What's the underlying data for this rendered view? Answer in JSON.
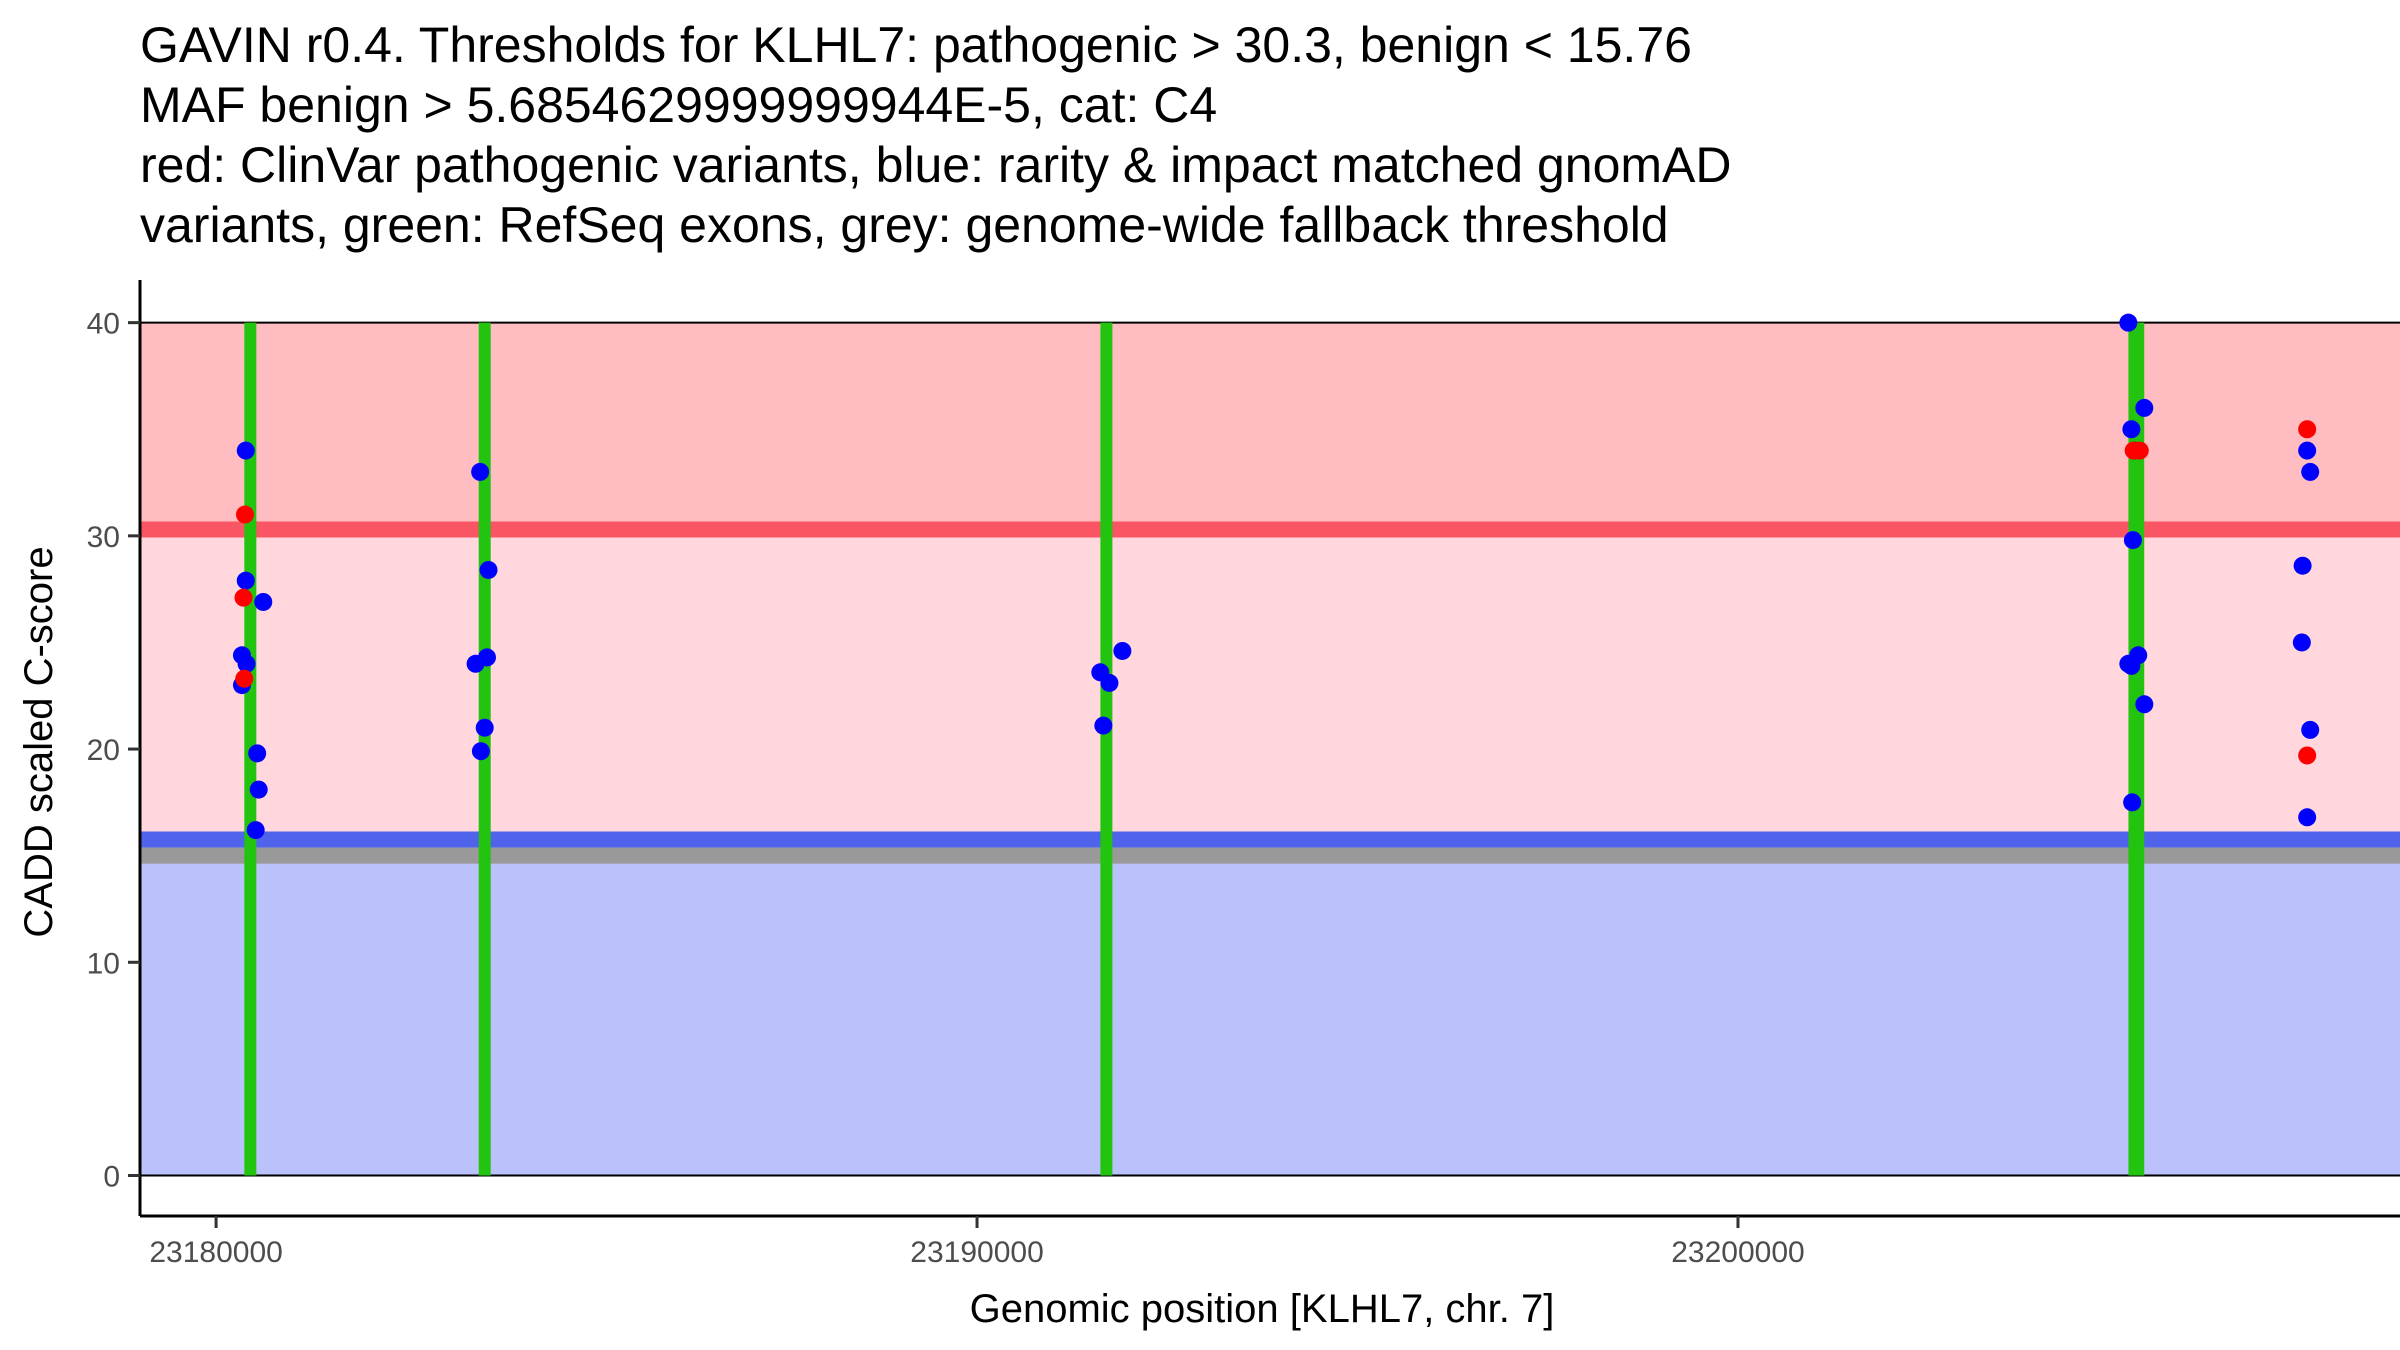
{
  "chart_data": {
    "type": "scatter",
    "title_lines": [
      "GAVIN r0.4. Thresholds for KLHL7: pathogenic > 30.3, benign < 15.76",
      "MAF benign > 5.6854629999999944E-5, cat: C4",
      "red: ClinVar pathogenic variants, blue: rarity & impact matched gnomAD",
      "variants, green: RefSeq exons, grey: genome-wide fallback threshold"
    ],
    "xlabel": "Genomic position [KLHL7, chr. 7]",
    "ylabel": "CADD scaled C-score",
    "xlim": [
      23179000,
      23208700
    ],
    "ylim": [
      -1.9,
      42
    ],
    "x_ticks": [
      23180000,
      23190000,
      23200000
    ],
    "x_tick_labels": [
      "23180000",
      "23190000",
      "23200000"
    ],
    "y_ticks": [
      0,
      10,
      20,
      30,
      40
    ],
    "y_tick_labels": [
      "0",
      "10",
      "20",
      "30",
      "40"
    ],
    "regions": [
      {
        "name": "benign-region",
        "y0": 0,
        "y1": 15.76,
        "color": "#bbc1fb"
      },
      {
        "name": "vus-region",
        "y0": 15.76,
        "y1": 30.3,
        "color": "#ffd7dc"
      },
      {
        "name": "pathogenic-region",
        "y0": 30.3,
        "y1": 40,
        "color": "#ffbcc1"
      }
    ],
    "region_x_range": [
      23179000,
      23208700
    ],
    "thresholds": [
      {
        "name": "fallback-threshold-line",
        "y": 15.0,
        "color": "#999999"
      },
      {
        "name": "benign-threshold-line",
        "y": 15.76,
        "color": "#4f63eb"
      },
      {
        "name": "pathogenic-threshold-line",
        "y": 30.3,
        "color": "#fa5564"
      }
    ],
    "exons": [
      23180450,
      23183530,
      23191700,
      23205210,
      23205260
    ],
    "exon_color": "#22c40f",
    "series": [
      {
        "name": "ClinVar pathogenic variants",
        "color": "#ff0000",
        "points": [
          {
            "x": 23180380,
            "y": 31.0
          },
          {
            "x": 23180360,
            "y": 27.1
          },
          {
            "x": 23180370,
            "y": 23.3
          },
          {
            "x": 23205200,
            "y": 34.0
          },
          {
            "x": 23205280,
            "y": 34.0
          },
          {
            "x": 23207480,
            "y": 35.0
          },
          {
            "x": 23207480,
            "y": 19.7
          }
        ]
      },
      {
        "name": "rarity & impact matched gnomAD variants",
        "color": "#0000ff",
        "points": [
          {
            "x": 23180390,
            "y": 34.0
          },
          {
            "x": 23180390,
            "y": 27.9
          },
          {
            "x": 23180620,
            "y": 26.9
          },
          {
            "x": 23180340,
            "y": 24.4
          },
          {
            "x": 23180400,
            "y": 24.0
          },
          {
            "x": 23180340,
            "y": 23.0
          },
          {
            "x": 23180540,
            "y": 19.8
          },
          {
            "x": 23180560,
            "y": 18.1
          },
          {
            "x": 23180520,
            "y": 16.2
          },
          {
            "x": 23183470,
            "y": 33.0
          },
          {
            "x": 23183580,
            "y": 28.4
          },
          {
            "x": 23183410,
            "y": 24.0
          },
          {
            "x": 23183560,
            "y": 24.3
          },
          {
            "x": 23183530,
            "y": 21.0
          },
          {
            "x": 23183480,
            "y": 19.9
          },
          {
            "x": 23191910,
            "y": 24.6
          },
          {
            "x": 23191620,
            "y": 23.6
          },
          {
            "x": 23191740,
            "y": 23.1
          },
          {
            "x": 23191660,
            "y": 21.1
          },
          {
            "x": 23205130,
            "y": 40.0
          },
          {
            "x": 23205340,
            "y": 36.0
          },
          {
            "x": 23205170,
            "y": 35.0
          },
          {
            "x": 23205210,
            "y": 34.0
          },
          {
            "x": 23205190,
            "y": 29.8
          },
          {
            "x": 23205130,
            "y": 24.0
          },
          {
            "x": 23205260,
            "y": 24.4
          },
          {
            "x": 23205170,
            "y": 23.9
          },
          {
            "x": 23205340,
            "y": 22.1
          },
          {
            "x": 23205180,
            "y": 17.5
          },
          {
            "x": 23207480,
            "y": 34.0
          },
          {
            "x": 23207520,
            "y": 33.0
          },
          {
            "x": 23207420,
            "y": 28.6
          },
          {
            "x": 23207410,
            "y": 25.0
          },
          {
            "x": 23207520,
            "y": 20.9
          },
          {
            "x": 23207480,
            "y": 16.8
          }
        ]
      }
    ]
  }
}
